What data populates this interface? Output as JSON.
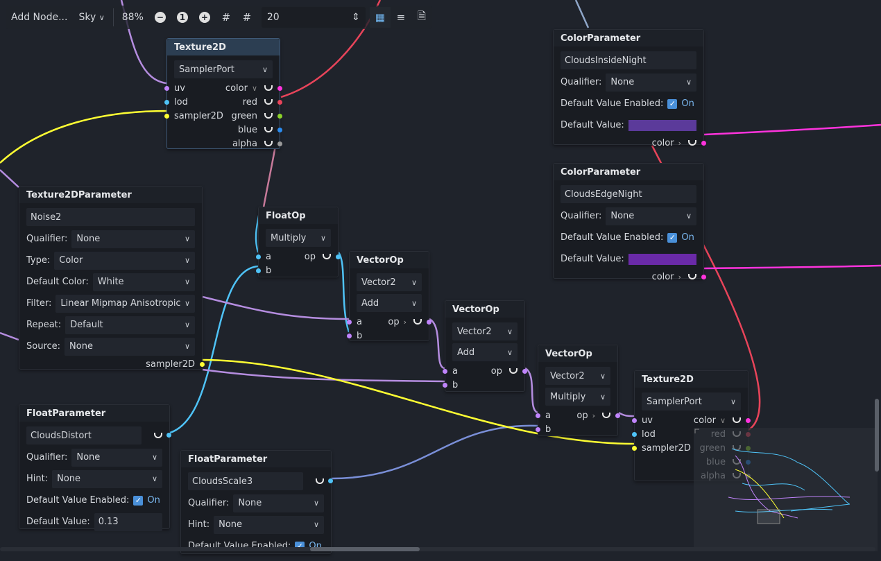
{
  "toolbar": {
    "add_node": "Add Node...",
    "mode": "Sky",
    "zoom": "88%",
    "zoom_out_icon": "minus-circle-icon",
    "zoom_reset": "1",
    "zoom_in_icon": "plus-circle-icon",
    "snap_value": "20",
    "icons": [
      "snap-grid-icon",
      "grid-icon",
      "minimap-icon",
      "arrange-icon",
      "shader-file-icon"
    ]
  },
  "port_colors": {
    "vector": "#c084fc",
    "scalar": "#4fc3f7",
    "sampler": "#ffff33",
    "color_out": "#ff33dd",
    "red": "#e8445a",
    "green": "#8bd22a",
    "blue": "#2b8cf0",
    "alpha": "#9a9a9a"
  },
  "nodes": [
    {
      "title": "Texture2D",
      "selected": true,
      "rows": [
        {
          "kind": "dropdown",
          "value": "SamplerPort"
        },
        {
          "kind": "port",
          "in": "uv",
          "out": "color",
          "out_dropdown": true,
          "ic": "vector",
          "oc": "color_out"
        },
        {
          "kind": "port",
          "in": "lod",
          "out": "red",
          "ic": "scalar",
          "oc": "red"
        },
        {
          "kind": "port",
          "in": "sampler2D",
          "out": "green",
          "ic": "sampler",
          "oc": "green"
        },
        {
          "kind": "port",
          "out": "blue",
          "oc": "blue"
        },
        {
          "kind": "port",
          "out": "alpha",
          "oc": "alpha"
        }
      ]
    },
    {
      "title": "Texture2DParameter",
      "rows": [
        {
          "kind": "field",
          "value": "Noise2"
        },
        {
          "kind": "prop",
          "label": "Qualifier:",
          "value": "None"
        },
        {
          "kind": "prop",
          "label": "Type:",
          "value": "Color"
        },
        {
          "kind": "prop",
          "label": "Default Color:",
          "value": "White"
        },
        {
          "kind": "prop",
          "label": "Filter:",
          "value": "Linear Mipmap Anisotropic"
        },
        {
          "kind": "prop",
          "label": "Repeat:",
          "value": "Default"
        },
        {
          "kind": "prop",
          "label": "Source:",
          "value": "None"
        },
        {
          "kind": "port",
          "out": "sampler2D",
          "nocup": true,
          "oc": "sampler"
        }
      ]
    },
    {
      "title": "FloatOp",
      "rows": [
        {
          "kind": "dropdown",
          "value": "Multiply"
        },
        {
          "kind": "port",
          "in": "a",
          "out": "op",
          "ic": "scalar",
          "oc": "scalar"
        },
        {
          "kind": "port",
          "in": "b",
          "ic": "scalar"
        }
      ]
    },
    {
      "title": "VectorOp",
      "rows": [
        {
          "kind": "dropdown",
          "value": "Vector2"
        },
        {
          "kind": "dropdown",
          "value": "Add"
        },
        {
          "kind": "port",
          "in": "a",
          "out": "op",
          "out_arrow": true,
          "ic": "vector",
          "oc": "vector"
        },
        {
          "kind": "port",
          "in": "b",
          "ic": "vector"
        }
      ]
    },
    {
      "title": "VectorOp",
      "rows": [
        {
          "kind": "dropdown",
          "value": "Vector2"
        },
        {
          "kind": "dropdown",
          "value": "Add"
        },
        {
          "kind": "port",
          "in": "a",
          "out": "op",
          "ic": "vector",
          "oc": "vector"
        },
        {
          "kind": "port",
          "in": "b",
          "ic": "vector"
        }
      ]
    },
    {
      "title": "VectorOp",
      "rows": [
        {
          "kind": "dropdown",
          "value": "Vector2"
        },
        {
          "kind": "dropdown",
          "value": "Multiply"
        },
        {
          "kind": "port",
          "in": "a",
          "out": "op",
          "out_arrow": true,
          "ic": "vector",
          "oc": "vector"
        },
        {
          "kind": "port",
          "in": "b",
          "ic": "vector"
        }
      ]
    },
    {
      "title": "Texture2D",
      "rows": [
        {
          "kind": "dropdown",
          "value": "SamplerPort"
        },
        {
          "kind": "port",
          "in": "uv",
          "out": "color",
          "out_dropdown": true,
          "ic": "vector",
          "oc": "color_out"
        },
        {
          "kind": "port",
          "in": "lod",
          "out": "red",
          "ic": "scalar",
          "oc": "red"
        },
        {
          "kind": "port",
          "in": "sampler2D",
          "out": "green",
          "ic": "sampler",
          "oc": "green"
        },
        {
          "kind": "port",
          "out": "blue",
          "oc": "blue"
        },
        {
          "kind": "port",
          "out": "alpha",
          "oc": "alpha"
        }
      ]
    },
    {
      "title": "FloatParameter",
      "rows": [
        {
          "kind": "field",
          "value": "CloudsDistort",
          "cup": true,
          "oc": "scalar"
        },
        {
          "kind": "prop",
          "label": "Qualifier:",
          "value": "None"
        },
        {
          "kind": "prop",
          "label": "Hint:",
          "value": "None"
        },
        {
          "kind": "check",
          "label": "Default Value Enabled:",
          "value": "On"
        },
        {
          "kind": "valfield",
          "label": "Default Value:",
          "value": "0.13"
        }
      ]
    },
    {
      "title": "FloatParameter",
      "rows": [
        {
          "kind": "field",
          "value": "CloudsScale3",
          "cup": true,
          "oc": "scalar"
        },
        {
          "kind": "prop",
          "label": "Qualifier:",
          "value": "None"
        },
        {
          "kind": "prop",
          "label": "Hint:",
          "value": "None"
        },
        {
          "kind": "check",
          "label": "Default Value Enabled:",
          "value": "On"
        }
      ]
    },
    {
      "title": "ColorParameter",
      "rows": [
        {
          "kind": "field",
          "value": "CloudsInsideNight"
        },
        {
          "kind": "prop",
          "label": "Qualifier:",
          "value": "None"
        },
        {
          "kind": "check",
          "label": "Default Value Enabled:",
          "value": "On"
        },
        {
          "kind": "swatch",
          "label": "Default Value:",
          "color": "#5b3a9a"
        },
        {
          "kind": "port",
          "out": "color",
          "out_arrow": true,
          "oc": "color_out"
        }
      ]
    },
    {
      "title": "ColorParameter",
      "rows": [
        {
          "kind": "field",
          "value": "CloudsEdgeNight"
        },
        {
          "kind": "prop",
          "label": "Qualifier:",
          "value": "None"
        },
        {
          "kind": "check",
          "label": "Default Value Enabled:",
          "value": "On"
        },
        {
          "kind": "swatch",
          "label": "Default Value:",
          "color": "#6a2aa8"
        },
        {
          "kind": "port",
          "out": "color",
          "out_arrow": true,
          "oc": "color_out"
        }
      ]
    }
  ]
}
